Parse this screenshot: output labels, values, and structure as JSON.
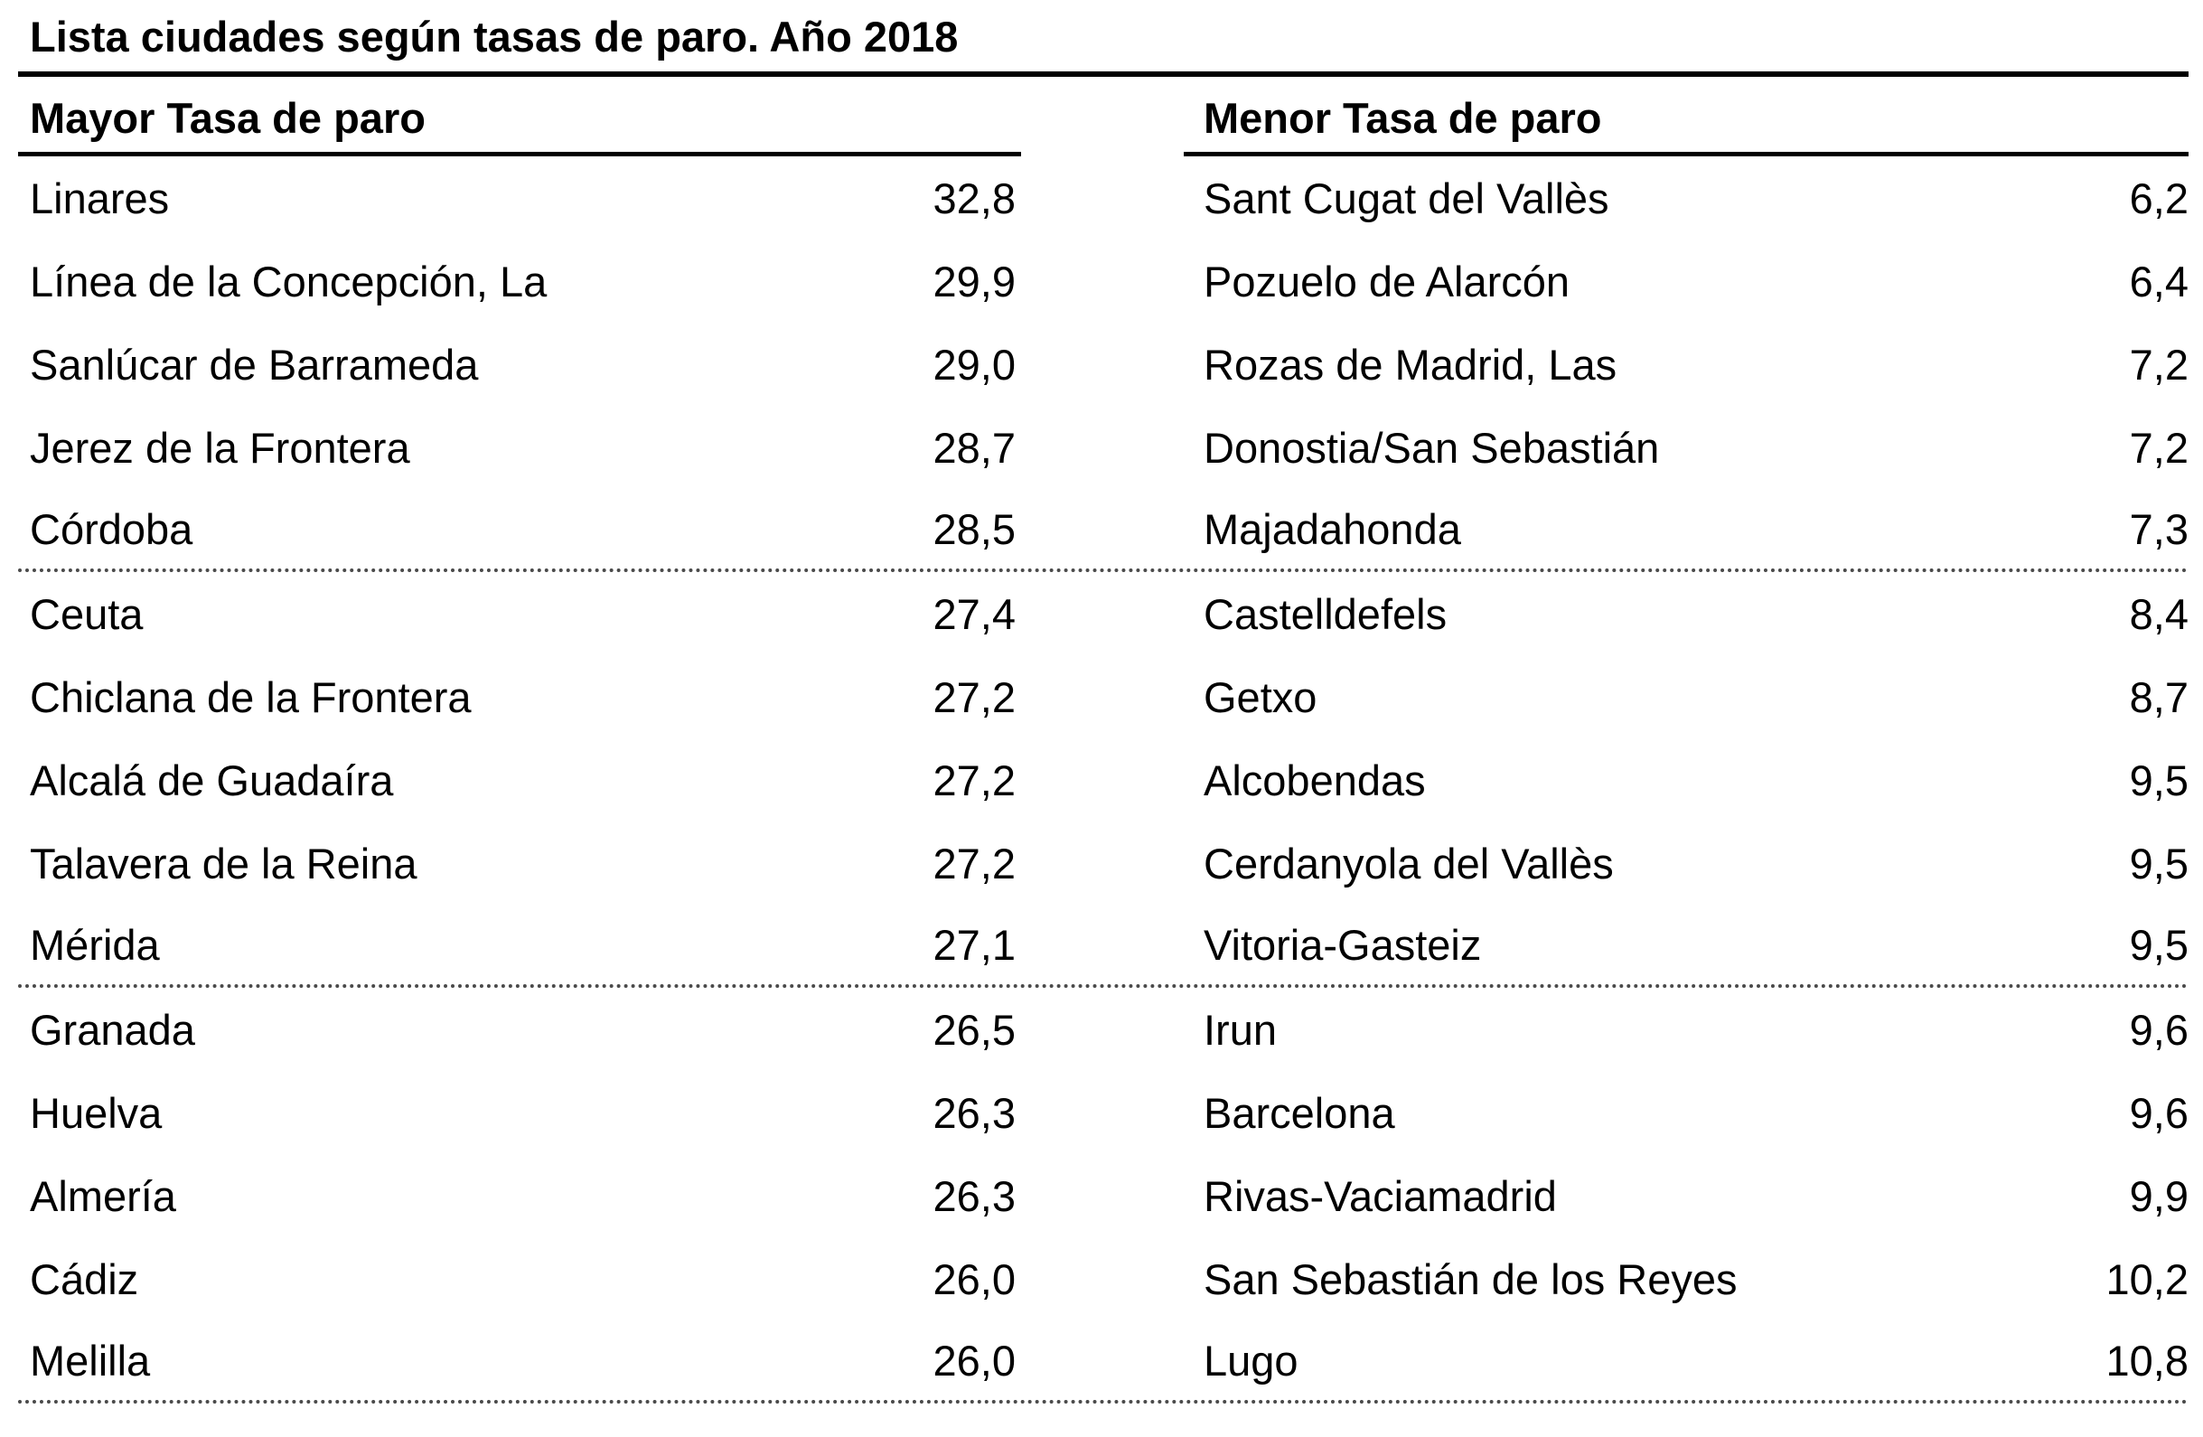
{
  "title": "Lista ciudades según tasas de paro. Año 2018",
  "left_column": {
    "header": "Mayor Tasa de paro",
    "rows": [
      {
        "city": "Linares",
        "rate": "32,8"
      },
      {
        "city": "Línea de la Concepción, La",
        "rate": "29,9"
      },
      {
        "city": "Sanlúcar de Barrameda",
        "rate": "29,0"
      },
      {
        "city": "Jerez de la Frontera",
        "rate": "28,7"
      },
      {
        "city": "Córdoba",
        "rate": "28,5"
      },
      {
        "city": "Ceuta",
        "rate": "27,4"
      },
      {
        "city": "Chiclana de la Frontera",
        "rate": "27,2"
      },
      {
        "city": "Alcalá de Guadaíra",
        "rate": "27,2"
      },
      {
        "city": "Talavera de la Reina",
        "rate": "27,2"
      },
      {
        "city": "Mérida",
        "rate": "27,1"
      },
      {
        "city": "Granada",
        "rate": "26,5"
      },
      {
        "city": "Huelva",
        "rate": "26,3"
      },
      {
        "city": "Almería",
        "rate": "26,3"
      },
      {
        "city": "Cádiz",
        "rate": "26,0"
      },
      {
        "city": "Melilla",
        "rate": "26,0"
      }
    ]
  },
  "right_column": {
    "header": "Menor Tasa de paro",
    "rows": [
      {
        "city": "Sant Cugat del Vallès",
        "rate": "6,2"
      },
      {
        "city": "Pozuelo de Alarcón",
        "rate": "6,4"
      },
      {
        "city": "Rozas de Madrid, Las",
        "rate": "7,2"
      },
      {
        "city": "Donostia/San Sebastián",
        "rate": "7,2"
      },
      {
        "city": "Majadahonda",
        "rate": "7,3"
      },
      {
        "city": "Castelldefels",
        "rate": "8,4"
      },
      {
        "city": "Getxo",
        "rate": "8,7"
      },
      {
        "city": "Alcobendas",
        "rate": "9,5"
      },
      {
        "city": "Cerdanyola del Vallès",
        "rate": "9,5"
      },
      {
        "city": "Vitoria-Gasteiz",
        "rate": "9,5"
      },
      {
        "city": "Irun",
        "rate": "9,6"
      },
      {
        "city": "Barcelona",
        "rate": "9,6"
      },
      {
        "city": "Rivas-Vaciamadrid",
        "rate": "9,9"
      },
      {
        "city": "San Sebastián de los Reyes",
        "rate": "10,2"
      },
      {
        "city": "Lugo",
        "rate": "10,8"
      }
    ]
  },
  "layout": {
    "rows_per_group": 5,
    "background": "#ffffff",
    "text_color": "#000000",
    "solid_line_color": "#000000",
    "dotted_line_color": "#4a4a4a"
  },
  "chart_data": {
    "type": "table",
    "title": "Lista ciudades según tasas de paro. Año 2018",
    "columns": [
      "Mayor Tasa de paro",
      "Menor Tasa de paro"
    ],
    "series": [
      {
        "name": "Mayor Tasa de paro",
        "categories": [
          "Linares",
          "Línea de la Concepción, La",
          "Sanlúcar de Barrameda",
          "Jerez de la Frontera",
          "Córdoba",
          "Ceuta",
          "Chiclana de la Frontera",
          "Alcalá de Guadaíra",
          "Talavera de la Reina",
          "Mérida",
          "Granada",
          "Huelva",
          "Almería",
          "Cádiz",
          "Melilla"
        ],
        "values": [
          32.8,
          29.9,
          29.0,
          28.7,
          28.5,
          27.4,
          27.2,
          27.2,
          27.2,
          27.1,
          26.5,
          26.3,
          26.3,
          26.0,
          26.0
        ]
      },
      {
        "name": "Menor Tasa de paro",
        "categories": [
          "Sant Cugat del Vallès",
          "Pozuelo de Alarcón",
          "Rozas de Madrid, Las",
          "Donostia/San Sebastián",
          "Majadahonda",
          "Castelldefels",
          "Getxo",
          "Alcobendas",
          "Cerdanyola del Vallès",
          "Vitoria-Gasteiz",
          "Irun",
          "Barcelona",
          "Rivas-Vaciamadrid",
          "San Sebastián de los Reyes",
          "Lugo"
        ],
        "values": [
          6.2,
          6.4,
          7.2,
          7.2,
          7.3,
          8.4,
          8.7,
          9.5,
          9.5,
          9.5,
          9.6,
          9.6,
          9.9,
          10.2,
          10.8
        ]
      }
    ]
  }
}
